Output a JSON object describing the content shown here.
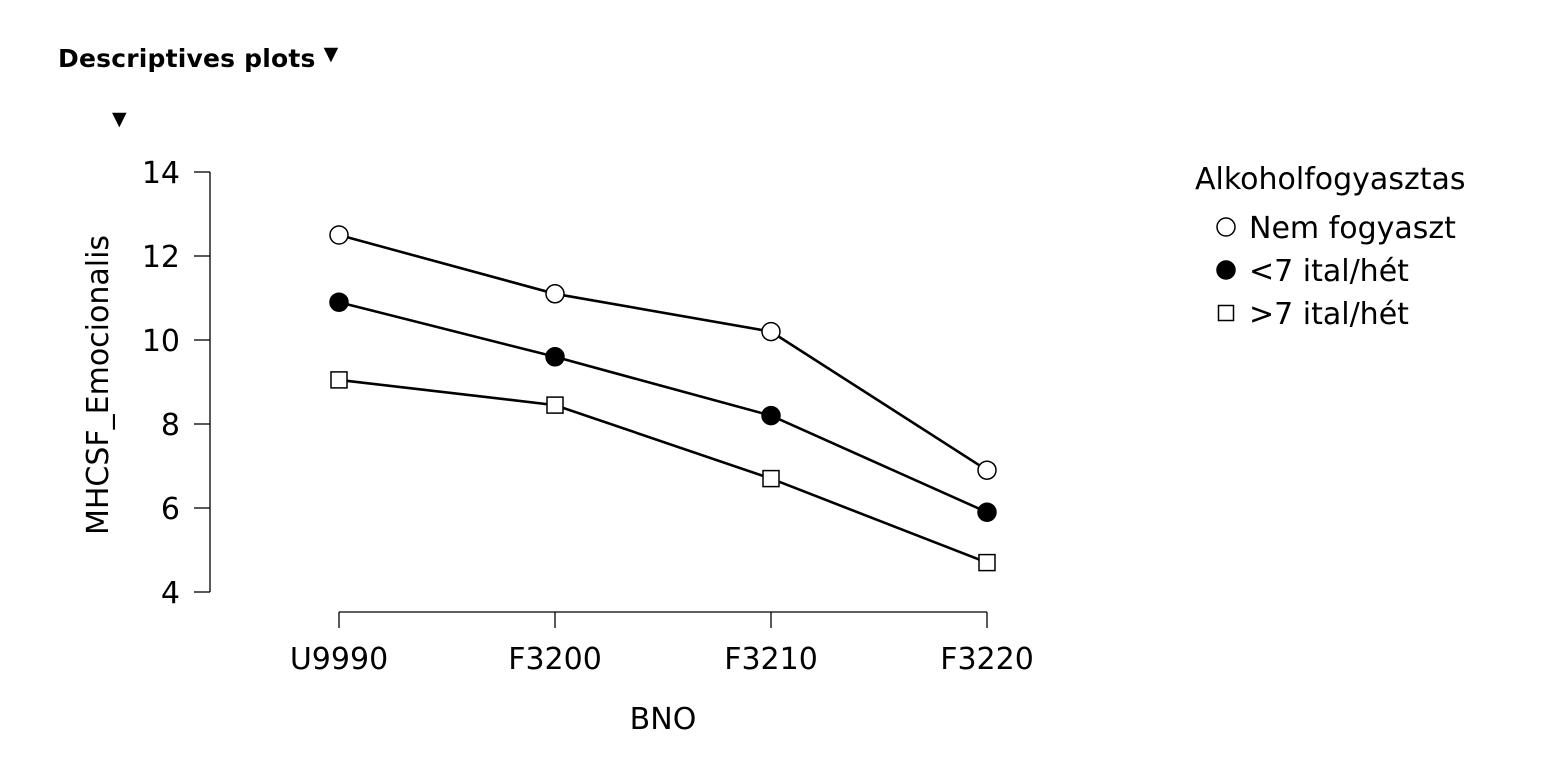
{
  "header": {
    "title": "Descriptives plots",
    "toggle_icon": "caret-down-icon",
    "sub_toggle_icon": "caret-down-icon"
  },
  "chart_data": {
    "type": "line",
    "xlabel": "BNO",
    "ylabel": "MHCSF_Emocionalis",
    "categories": [
      "U9990",
      "F3200",
      "F3210",
      "F3220"
    ],
    "yticks": [
      4,
      6,
      8,
      10,
      12,
      14
    ],
    "ylim": [
      4,
      14
    ],
    "legend_title": "Alkoholfogyasztas",
    "legend_placement": "right",
    "grid": false,
    "series": [
      {
        "name": "Nem fogyaszt",
        "marker": "circle-open",
        "values": [
          12.5,
          11.1,
          10.2,
          6.9
        ]
      },
      {
        "name": "<7 ital/hét",
        "marker": "circle-filled",
        "values": [
          10.9,
          9.6,
          8.2,
          5.9
        ]
      },
      {
        "name": ">7 ital/hét",
        "marker": "square-open",
        "values": [
          9.05,
          8.45,
          6.7,
          4.7
        ]
      }
    ]
  }
}
